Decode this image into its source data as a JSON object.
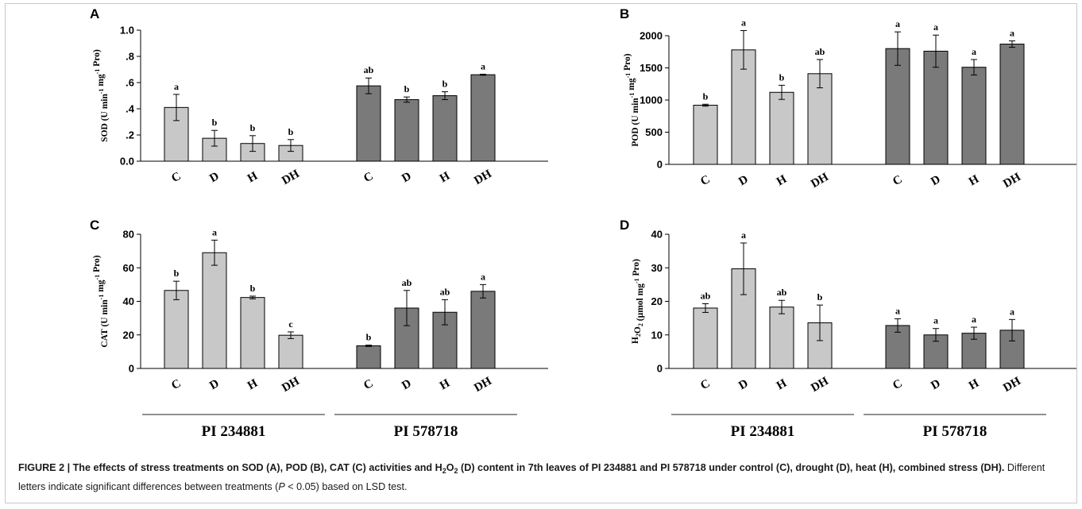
{
  "colors": {
    "light_bar": "#c8c8c8",
    "dark_bar": "#7a7a7a",
    "axis": "#000000",
    "rule": "#222222"
  },
  "chart_data": [
    {
      "panel": "A",
      "type": "bar",
      "ylabel": "SOD (U min-1 mg-1 Pro)",
      "ylabel_parts": [
        "SOD (U min",
        "-1",
        " mg",
        "-1",
        " Pro)"
      ],
      "ylim": [
        0,
        1.0
      ],
      "ytick_values": [
        0,
        0.2,
        0.4,
        0.6,
        0.8,
        1.0
      ],
      "ytick_labels": [
        "0.0",
        ".2",
        ".4",
        ".6",
        ".8",
        "1.0"
      ],
      "categories": [
        "C",
        "D",
        "H",
        "DH",
        "C",
        "D",
        "H",
        "DH"
      ],
      "groups": [
        "PI 234881",
        "PI 234881",
        "PI 234881",
        "PI 234881",
        "PI 578718",
        "PI 578718",
        "PI 578718",
        "PI 578718"
      ],
      "values": [
        0.41,
        0.175,
        0.135,
        0.12,
        0.575,
        0.47,
        0.5,
        0.66
      ],
      "errors": [
        0.1,
        0.06,
        0.06,
        0.045,
        0.06,
        0.02,
        0.03,
        0.004
      ],
      "letters": [
        "a",
        "b",
        "b",
        "b",
        "ab",
        "b",
        "b",
        "a"
      ]
    },
    {
      "panel": "B",
      "type": "bar",
      "ylabel": "POD (U min-1 mg-1 Pro)",
      "ylabel_parts": [
        "POD (U min",
        "-1",
        " mg",
        "-1",
        " Pro)"
      ],
      "ylim": [
        0,
        2000
      ],
      "ytick_values": [
        0,
        500,
        1000,
        1500,
        2000
      ],
      "ytick_labels": [
        "0",
        "500",
        "1000",
        "1500",
        "2000"
      ],
      "categories": [
        "C",
        "D",
        "H",
        "DH",
        "C",
        "D",
        "H",
        "DH"
      ],
      "groups": [
        "PI 234881",
        "PI 234881",
        "PI 234881",
        "PI 234881",
        "PI 578718",
        "PI 578718",
        "PI 578718",
        "PI 578718"
      ],
      "values": [
        920,
        1780,
        1120,
        1410,
        1800,
        1760,
        1510,
        1870
      ],
      "errors": [
        15,
        300,
        110,
        220,
        260,
        250,
        120,
        50
      ],
      "letters": [
        "b",
        "a",
        "b",
        "ab",
        "a",
        "a",
        "a",
        "a"
      ]
    },
    {
      "panel": "C",
      "type": "bar",
      "ylabel": "CAT (U min-1 mg-1 Pro)",
      "ylabel_parts": [
        "CAT (U min",
        "-1",
        " mg",
        "-1",
        " Pro)"
      ],
      "ylim": [
        0,
        80
      ],
      "ytick_values": [
        0,
        20,
        40,
        60,
        80
      ],
      "ytick_labels": [
        "0",
        "20",
        "40",
        "60",
        "80"
      ],
      "categories": [
        "C",
        "D",
        "H",
        "DH",
        "C",
        "D",
        "H",
        "DH"
      ],
      "groups": [
        "PI 234881",
        "PI 234881",
        "PI 234881",
        "PI 234881",
        "PI 578718",
        "PI 578718",
        "PI 578718",
        "PI 578718"
      ],
      "values": [
        46.5,
        69,
        42.3,
        19.8,
        13.5,
        36,
        33.5,
        46
      ],
      "errors": [
        5.5,
        7.5,
        0.8,
        2,
        0.4,
        10.5,
        7.5,
        4
      ],
      "letters": [
        "b",
        "a",
        "b",
        "c",
        "b",
        "ab",
        "ab",
        "a"
      ]
    },
    {
      "panel": "D",
      "type": "bar",
      "ylabel": "H2O2 (µmol mg-1 Pro)",
      "ylabel_parts": [
        "H",
        "2",
        "O",
        "2",
        " (µmol mg",
        "-1",
        " Pro)"
      ],
      "ylim": [
        0,
        40
      ],
      "ytick_values": [
        0,
        10,
        20,
        30,
        40
      ],
      "ytick_labels": [
        "0",
        "10",
        "20",
        "30",
        "40"
      ],
      "categories": [
        "C",
        "D",
        "H",
        "DH",
        "C",
        "D",
        "H",
        "DH"
      ],
      "groups": [
        "PI 234881",
        "PI 234881",
        "PI 234881",
        "PI 234881",
        "PI 578718",
        "PI 578718",
        "PI 578718",
        "PI 578718"
      ],
      "values": [
        18,
        29.7,
        18.3,
        13.6,
        12.8,
        10,
        10.5,
        11.4
      ],
      "errors": [
        1.3,
        7.7,
        2,
        5.3,
        2,
        1.9,
        1.8,
        3.2
      ],
      "letters": [
        "ab",
        "a",
        "ab",
        "b",
        "a",
        "a",
        "a",
        "a"
      ]
    }
  ],
  "group_labels": [
    "PI 234881",
    "PI 578718"
  ],
  "caption": {
    "bold_part1": "FIGURE 2 | The effects of stress treatments on SOD (A), POD (B), CAT (C) activities and H",
    "bold_sub1": "2",
    "bold_part2": "O",
    "bold_sub2": "2",
    "bold_part3": " (D) content in 7th leaves of PI 234881 and PI 578718 under control (C), drought (D), heat (H), combined stress (DH).",
    "normal_part1": " Different letters indicate significant differences between treatments (",
    "italic_p": "P",
    "normal_part2": " < 0.05) based on LSD test."
  }
}
